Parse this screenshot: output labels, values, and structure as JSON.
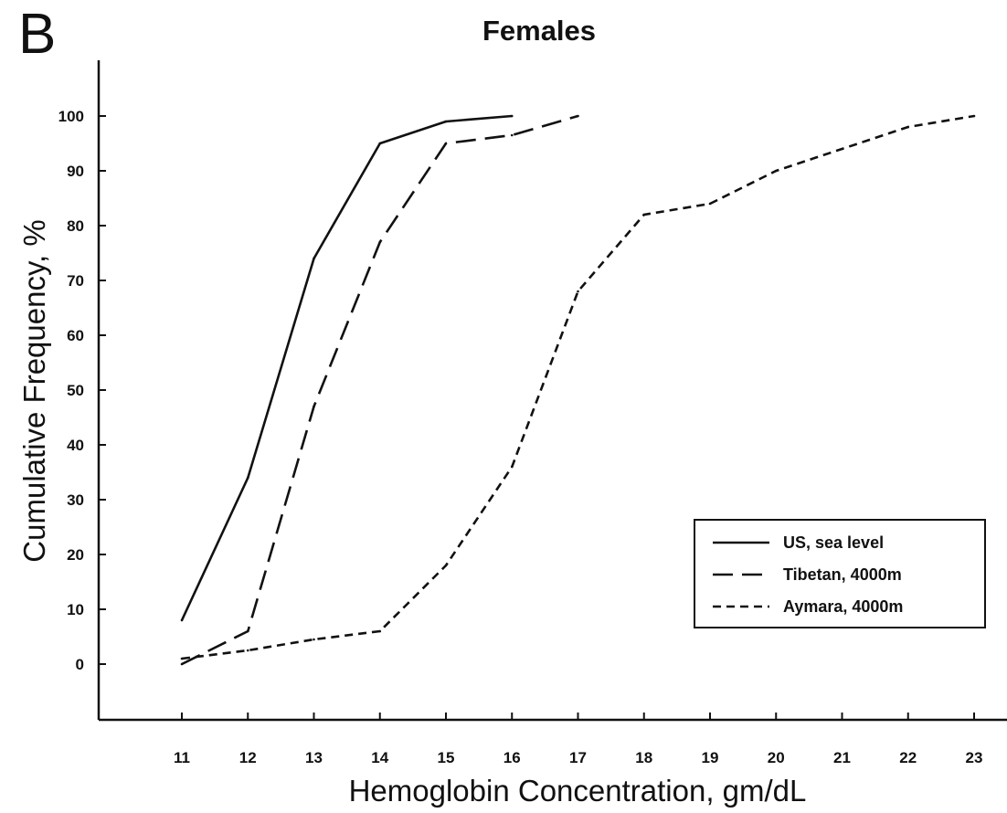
{
  "panel_label": "B",
  "chart_data": {
    "type": "line",
    "title": "Females",
    "xlabel": "Hemoglobin Concentration, gm/dL",
    "ylabel": "Cumulative Frequency, %",
    "xlim": [
      11,
      23
    ],
    "ylim": [
      0,
      100
    ],
    "x_ticks": [
      11,
      12,
      13,
      14,
      15,
      16,
      17,
      18,
      19,
      20,
      21,
      22,
      23
    ],
    "y_ticks": [
      0,
      10,
      20,
      30,
      40,
      50,
      60,
      70,
      80,
      90,
      100
    ],
    "grid": false,
    "legend_position": "bottom-right",
    "series": [
      {
        "name": "US, sea level",
        "style": "solid",
        "x": [
          11,
          12,
          13,
          14,
          15,
          16
        ],
        "y": [
          8,
          34,
          74,
          95,
          99,
          100
        ]
      },
      {
        "name": "Tibetan, 4000m",
        "style": "long-dash",
        "x": [
          11,
          12,
          13,
          14,
          15,
          16,
          17
        ],
        "y": [
          0,
          6,
          47,
          77,
          95,
          96.5,
          100
        ]
      },
      {
        "name": "Aymara, 4000m",
        "style": "short-dash",
        "x": [
          11,
          12,
          13,
          14,
          15,
          16,
          17,
          18,
          19,
          20,
          21,
          22,
          23
        ],
        "y": [
          1,
          2.5,
          4.5,
          6,
          18,
          36,
          68,
          82,
          84,
          90,
          94,
          98,
          100
        ]
      }
    ],
    "colors": {
      "line": "#111111",
      "background": "#ffffff"
    }
  }
}
